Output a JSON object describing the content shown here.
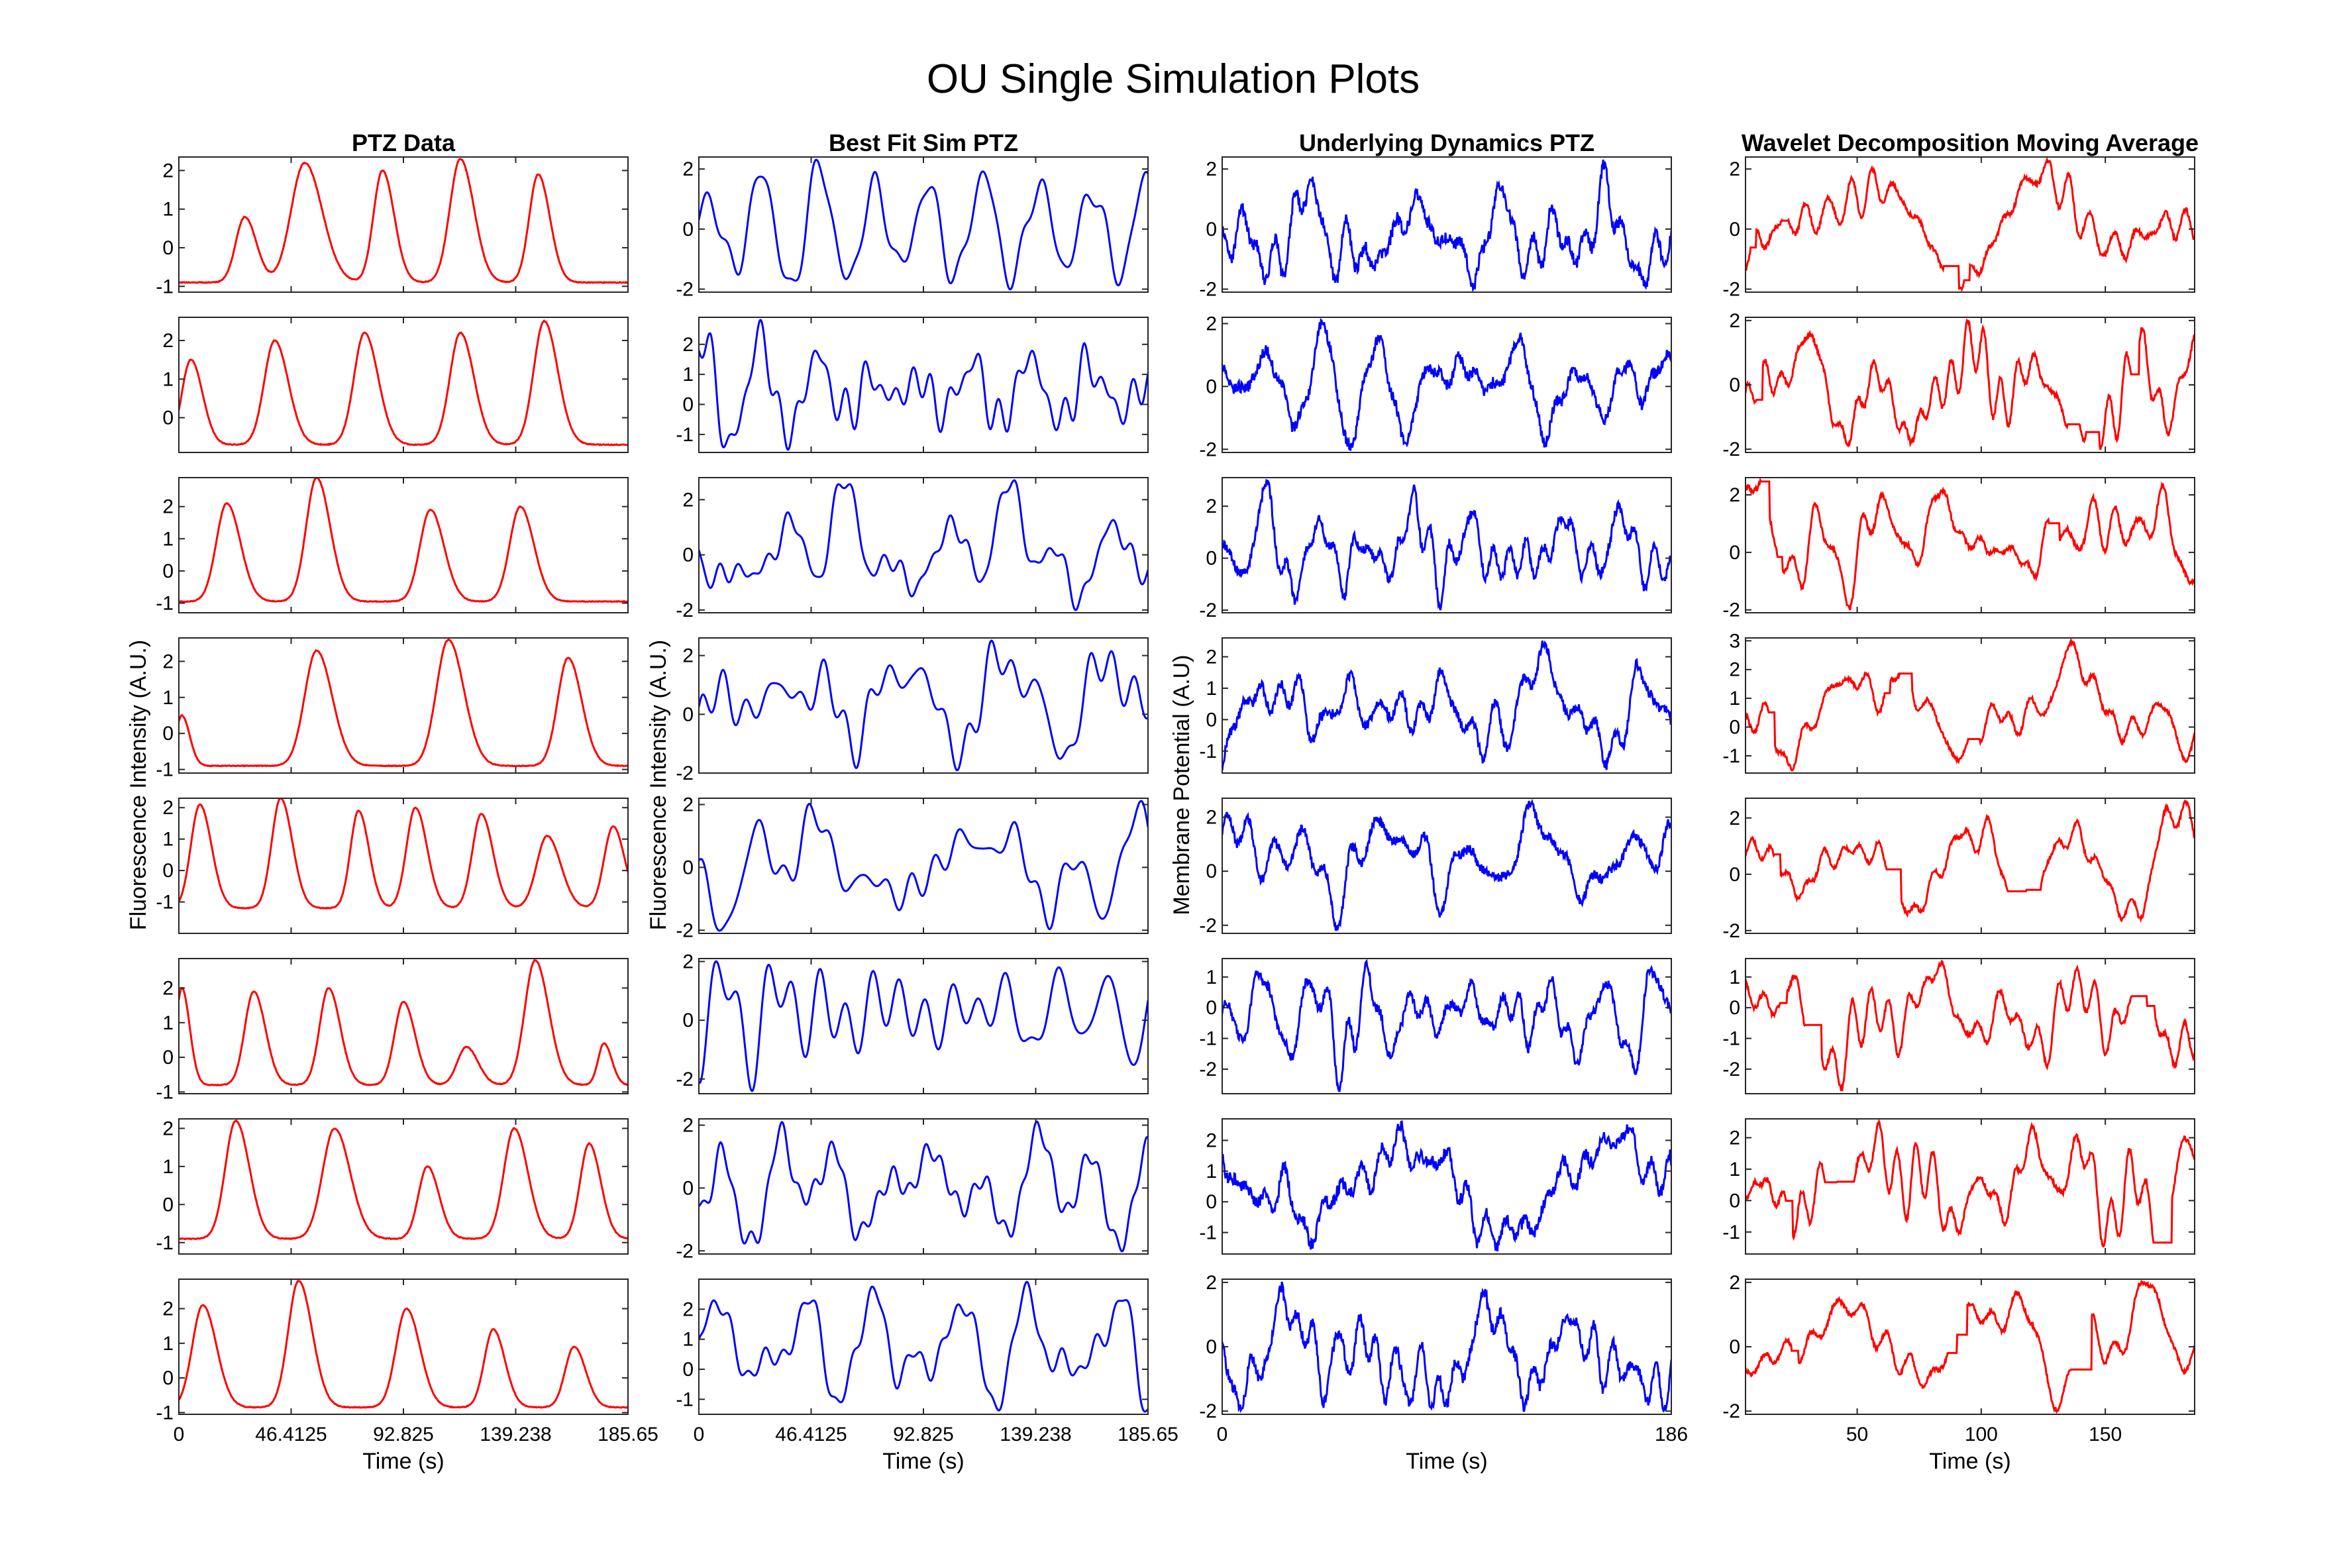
{
  "figure": {
    "title": "OU Single Simulation Plots"
  },
  "chart_data": {
    "type": "line",
    "rows": 8,
    "columns": [
      {
        "title": "PTZ Data",
        "color": "#ff0000",
        "ylabel": "Fluorescence Intensity (A.U.)",
        "xlabel": "Time (s)",
        "xlim": [
          0,
          185.65
        ],
        "xticks": [
          0,
          46.4125,
          92.825,
          139.238,
          185.65
        ],
        "xtick_labels": [
          "0",
          "46.4125",
          "92.825",
          "139.238",
          "185.65"
        ],
        "style": "peaks",
        "panels": [
          {
            "ylim": [
              -1.15,
              2.35
            ],
            "yticks": [
              -1,
              0,
              1,
              2
            ],
            "base": -0.9,
            "peaks": [
              [
                22,
                0.8,
                3
              ],
              [
                42,
                2.2,
                4.5
              ],
              [
                68,
                2.0,
                3
              ],
              [
                94,
                2.3,
                3.5
              ],
              [
                120,
                1.9,
                3
              ]
            ],
            "seed": 1
          },
          {
            "ylim": [
              -0.9,
              2.6
            ],
            "yticks": [
              0,
              1,
              2
            ],
            "base": -0.7,
            "peaks": [
              [
                4,
                1.5,
                3
              ],
              [
                32,
                2.0,
                3.5
              ],
              [
                62,
                2.2,
                3.5
              ],
              [
                94,
                2.2,
                3.5
              ],
              [
                122,
                2.5,
                3.5
              ]
            ],
            "seed": 2
          },
          {
            "ylim": [
              -1.3,
              2.9
            ],
            "yticks": [
              -1,
              0,
              1,
              2
            ],
            "base": -0.95,
            "peaks": [
              [
                16,
                2.1,
                3.5
              ],
              [
                46,
                2.9,
                3.5
              ],
              [
                84,
                1.9,
                3.5
              ],
              [
                114,
                2.0,
                3.5
              ]
            ],
            "seed": 3
          },
          {
            "ylim": [
              -1.1,
              2.65
            ],
            "yticks": [
              -1,
              0,
              1,
              2
            ],
            "base": -0.9,
            "peaks": [
              [
                1,
                0.5,
                2
              ],
              [
                46,
                2.3,
                4
              ],
              [
                90,
                2.6,
                4
              ],
              [
                130,
                2.1,
                3.5
              ]
            ],
            "seed": 4
          },
          {
            "ylim": [
              -2.0,
              2.3
            ],
            "yticks": [
              -1,
              0,
              1,
              2
            ],
            "base": -1.2,
            "peaks": [
              [
                7,
                2.1,
                3
              ],
              [
                34,
                2.3,
                3
              ],
              [
                60,
                1.9,
                2.7
              ],
              [
                79,
                2.0,
                3
              ],
              [
                101,
                1.8,
                3
              ],
              [
                123,
                1.1,
                3.5
              ],
              [
                145,
                1.4,
                3
              ]
            ],
            "seed": 5
          },
          {
            "ylim": [
              -1.05,
              2.85
            ],
            "yticks": [
              -1,
              0,
              1,
              2
            ],
            "base": -0.8,
            "peaks": [
              [
                1,
                2.0,
                2
              ],
              [
                25,
                1.9,
                3
              ],
              [
                50,
                2.0,
                3
              ],
              [
                75,
                1.6,
                3
              ],
              [
                96,
                0.3,
                3
              ],
              [
                119,
                2.8,
                3.5
              ],
              [
                142,
                0.4,
                2
              ]
            ],
            "seed": 6
          },
          {
            "ylim": [
              -1.3,
              2.25
            ],
            "yticks": [
              -1,
              0,
              1,
              2
            ],
            "base": -0.9,
            "peaks": [
              [
                19,
                2.2,
                3.5
              ],
              [
                52,
                2.0,
                4
              ],
              [
                83,
                1.0,
                3
              ],
              [
                112,
                2.0,
                3.5
              ],
              [
                137,
                1.6,
                3
              ]
            ],
            "seed": 7
          },
          {
            "ylim": [
              -1.05,
              2.85
            ],
            "yticks": [
              -1,
              0,
              1,
              2
            ],
            "base": -0.85,
            "peaks": [
              [
                8,
                2.1,
                3.5
              ],
              [
                40,
                2.8,
                3.5
              ],
              [
                76,
                2.0,
                3.5
              ],
              [
                105,
                1.4,
                3
              ],
              [
                132,
                0.9,
                3
              ]
            ],
            "seed": 8
          }
        ]
      },
      {
        "title": "Best Fit Sim PTZ",
        "color": "#0000ff",
        "ylabel": "Fluorescence Intensity (A.U.)",
        "xlabel": "Time (s)",
        "xlim": [
          0,
          185.65
        ],
        "xticks": [
          0,
          46.4125,
          92.825,
          139.238,
          185.65
        ],
        "xtick_labels": [
          "0",
          "46.4125",
          "92.825",
          "139.238",
          "185.65"
        ],
        "style": "smooth",
        "panels": [
          {
            "ylim": [
              -2.1,
              2.4
            ],
            "yticks": [
              -2,
              0,
              2
            ],
            "seed": 11
          },
          {
            "ylim": [
              -1.6,
              2.9
            ],
            "yticks": [
              -1,
              0,
              1,
              2
            ],
            "seed": 12
          },
          {
            "ylim": [
              -2.1,
              2.8
            ],
            "yticks": [
              -2,
              0,
              2
            ],
            "seed": 13
          },
          {
            "ylim": [
              -2.0,
              2.6
            ],
            "yticks": [
              -2,
              0,
              2
            ],
            "seed": 14
          },
          {
            "ylim": [
              -2.1,
              2.2
            ],
            "yticks": [
              -2,
              0,
              2
            ],
            "seed": 15
          },
          {
            "ylim": [
              -2.5,
              2.1
            ],
            "yticks": [
              -2,
              0,
              2
            ],
            "seed": 16
          },
          {
            "ylim": [
              -2.1,
              2.2
            ],
            "yticks": [
              -2,
              0,
              2
            ],
            "seed": 17
          },
          {
            "ylim": [
              -1.5,
              3.0
            ],
            "yticks": [
              -1,
              0,
              1,
              2
            ],
            "seed": 18
          }
        ]
      },
      {
        "title": "Underlying Dynamics PTZ",
        "color": "#0000ff",
        "ylabel": "Membrane Potential (A.U)",
        "xlabel": "Time (s)",
        "xlim": [
          0,
          186
        ],
        "xticks": [
          0,
          186
        ],
        "xtick_labels": [
          "0",
          "186"
        ],
        "style": "noisy",
        "panels": [
          {
            "ylim": [
              -2.1,
              2.4
            ],
            "yticks": [
              -2,
              0,
              2
            ],
            "seed": 21
          },
          {
            "ylim": [
              -2.1,
              2.2
            ],
            "yticks": [
              -2,
              0,
              2
            ],
            "seed": 22
          },
          {
            "ylim": [
              -2.1,
              3.1
            ],
            "yticks": [
              -2,
              0,
              2
            ],
            "seed": 23
          },
          {
            "ylim": [
              -1.7,
              2.6
            ],
            "yticks": [
              -1,
              0,
              1,
              2
            ],
            "seed": 24
          },
          {
            "ylim": [
              -2.3,
              2.7
            ],
            "yticks": [
              -2,
              0,
              2
            ],
            "seed": 25
          },
          {
            "ylim": [
              -2.8,
              1.6
            ],
            "yticks": [
              -2,
              -1,
              0,
              1
            ],
            "seed": 26
          },
          {
            "ylim": [
              -1.7,
              2.7
            ],
            "yticks": [
              -1,
              0,
              1,
              2
            ],
            "seed": 27
          },
          {
            "ylim": [
              -2.1,
              2.1
            ],
            "yticks": [
              -2,
              0,
              2
            ],
            "seed": 28
          }
        ]
      },
      {
        "title": "Wavelet Decomposition Moving Average",
        "color": "#ff0000",
        "ylabel": "",
        "xlabel": "Time (s)",
        "xlim": [
          5,
          186
        ],
        "xticks": [
          50,
          100,
          150
        ],
        "xtick_labels": [
          "50",
          "100",
          "150"
        ],
        "style": "wavelet",
        "panels": [
          {
            "ylim": [
              -2.1,
              2.4
            ],
            "yticks": [
              -2,
              0,
              2
            ],
            "seed": 31
          },
          {
            "ylim": [
              -2.1,
              2.1
            ],
            "yticks": [
              -2,
              0,
              2
            ],
            "seed": 32
          },
          {
            "ylim": [
              -2.1,
              2.6
            ],
            "yticks": [
              -2,
              0,
              2
            ],
            "seed": 33
          },
          {
            "ylim": [
              -1.6,
              3.1
            ],
            "yticks": [
              -1,
              0,
              1,
              2,
              3
            ],
            "seed": 34
          },
          {
            "ylim": [
              -2.1,
              2.7
            ],
            "yticks": [
              -2,
              0,
              2
            ],
            "seed": 35
          },
          {
            "ylim": [
              -2.8,
              1.6
            ],
            "yticks": [
              -2,
              -1,
              0,
              1
            ],
            "seed": 36
          },
          {
            "ylim": [
              -1.7,
              2.6
            ],
            "yticks": [
              -1,
              0,
              1,
              2
            ],
            "seed": 37
          },
          {
            "ylim": [
              -2.1,
              2.1
            ],
            "yticks": [
              -2,
              0,
              2
            ],
            "seed": 38
          }
        ]
      }
    ]
  }
}
